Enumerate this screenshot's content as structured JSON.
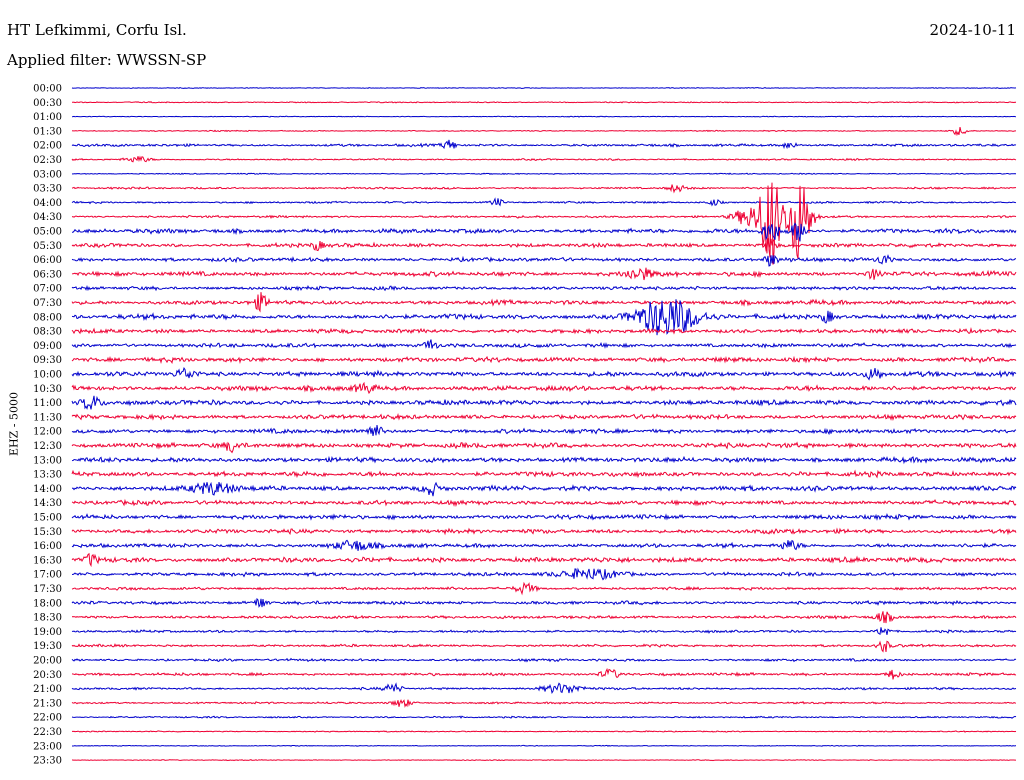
{
  "header": {
    "station": "HT Lefkimmi, Corfu Isl.",
    "date": "2024-10-11",
    "filter": "Applied filter: WWSSN-SP",
    "channel_label": "EHZ - 5000"
  },
  "chart_data": {
    "type": "line",
    "title": "HT Lefkimmi, Corfu Isl.",
    "subtitle": "Applied filter: WWSSN-SP",
    "ylabel": "EHZ - 5000",
    "xlabel": "",
    "grid": false,
    "colors": {
      "even_trace": "#0000cc",
      "odd_trace": "#ee0033"
    },
    "time_labels": [
      "00:00",
      "00:30",
      "01:00",
      "01:30",
      "02:00",
      "02:30",
      "03:00",
      "03:30",
      "04:00",
      "04:30",
      "05:00",
      "05:30",
      "06:00",
      "06:30",
      "07:00",
      "07:30",
      "08:00",
      "08:30",
      "09:00",
      "09:30",
      "10:00",
      "10:30",
      "11:00",
      "11:30",
      "12:00",
      "12:30",
      "13:00",
      "13:30",
      "14:00",
      "14:30",
      "15:00",
      "15:30",
      "16:00",
      "16:30",
      "17:00",
      "17:30",
      "18:00",
      "18:30",
      "19:00",
      "19:30",
      "20:00",
      "20:30",
      "21:00",
      "21:30",
      "22:00",
      "22:30",
      "23:00",
      "23:30"
    ],
    "noise_amplitude": [
      0.3,
      0.4,
      0.3,
      0.4,
      0.9,
      0.6,
      0.4,
      0.7,
      0.7,
      0.8,
      1.6,
      1.4,
      1.4,
      1.6,
      1.3,
      1.6,
      1.8,
      1.5,
      1.5,
      1.7,
      1.8,
      1.8,
      1.8,
      1.6,
      1.6,
      1.8,
      1.8,
      1.8,
      1.8,
      1.6,
      1.6,
      1.6,
      1.4,
      1.8,
      1.3,
      1.0,
      1.2,
      1.1,
      0.9,
      0.9,
      0.9,
      1.0,
      0.8,
      0.7,
      0.6,
      0.4,
      0.3,
      0.3
    ],
    "events": [
      {
        "trace": 3,
        "pos": 0.94,
        "amp": 4,
        "width": 0.008
      },
      {
        "trace": 4,
        "pos": 0.4,
        "amp": 5,
        "width": 0.007
      },
      {
        "trace": 4,
        "pos": 0.76,
        "amp": 3,
        "width": 0.008
      },
      {
        "trace": 5,
        "pos": 0.07,
        "amp": 3,
        "width": 0.012
      },
      {
        "trace": 7,
        "pos": 0.64,
        "amp": 4,
        "width": 0.008
      },
      {
        "trace": 8,
        "pos": 0.45,
        "amp": 4,
        "width": 0.006
      },
      {
        "trace": 8,
        "pos": 0.68,
        "amp": 3,
        "width": 0.007
      },
      {
        "trace": 9,
        "pos": 0.74,
        "amp": 48,
        "width": 0.01
      },
      {
        "trace": 9,
        "pos": 0.77,
        "amp": 44,
        "width": 0.012
      },
      {
        "trace": 9,
        "pos": 0.72,
        "amp": 10,
        "width": 0.018
      },
      {
        "trace": 10,
        "pos": 0.74,
        "amp": 12,
        "width": 0.008
      },
      {
        "trace": 10,
        "pos": 0.77,
        "amp": 10,
        "width": 0.008
      },
      {
        "trace": 11,
        "pos": 0.26,
        "amp": 5,
        "width": 0.006
      },
      {
        "trace": 11,
        "pos": 0.74,
        "amp": 8,
        "width": 0.006
      },
      {
        "trace": 12,
        "pos": 0.74,
        "amp": 6,
        "width": 0.006
      },
      {
        "trace": 12,
        "pos": 0.86,
        "amp": 5,
        "width": 0.006
      },
      {
        "trace": 13,
        "pos": 0.6,
        "amp": 6,
        "width": 0.015
      },
      {
        "trace": 13,
        "pos": 0.85,
        "amp": 5,
        "width": 0.008
      },
      {
        "trace": 15,
        "pos": 0.2,
        "amp": 8,
        "width": 0.006
      },
      {
        "trace": 16,
        "pos": 0.63,
        "amp": 20,
        "width": 0.03
      },
      {
        "trace": 16,
        "pos": 0.8,
        "amp": 6,
        "width": 0.006
      },
      {
        "trace": 18,
        "pos": 0.38,
        "amp": 6,
        "width": 0.006
      },
      {
        "trace": 20,
        "pos": 0.12,
        "amp": 5,
        "width": 0.01
      },
      {
        "trace": 20,
        "pos": 0.85,
        "amp": 6,
        "width": 0.008
      },
      {
        "trace": 21,
        "pos": 0.31,
        "amp": 5,
        "width": 0.01
      },
      {
        "trace": 22,
        "pos": 0.02,
        "amp": 7,
        "width": 0.01
      },
      {
        "trace": 24,
        "pos": 0.32,
        "amp": 6,
        "width": 0.008
      },
      {
        "trace": 25,
        "pos": 0.17,
        "amp": 6,
        "width": 0.006
      },
      {
        "trace": 28,
        "pos": 0.15,
        "amp": 6,
        "width": 0.02
      },
      {
        "trace": 28,
        "pos": 0.38,
        "amp": 6,
        "width": 0.008
      },
      {
        "trace": 32,
        "pos": 0.3,
        "amp": 5,
        "width": 0.02
      },
      {
        "trace": 32,
        "pos": 0.76,
        "amp": 5,
        "width": 0.01
      },
      {
        "trace": 33,
        "pos": 0.02,
        "amp": 6,
        "width": 0.006
      },
      {
        "trace": 34,
        "pos": 0.55,
        "amp": 5,
        "width": 0.03
      },
      {
        "trace": 35,
        "pos": 0.48,
        "amp": 5,
        "width": 0.01
      },
      {
        "trace": 36,
        "pos": 0.2,
        "amp": 6,
        "width": 0.006
      },
      {
        "trace": 37,
        "pos": 0.86,
        "amp": 5,
        "width": 0.01
      },
      {
        "trace": 38,
        "pos": 0.86,
        "amp": 6,
        "width": 0.006
      },
      {
        "trace": 39,
        "pos": 0.86,
        "amp": 6,
        "width": 0.006
      },
      {
        "trace": 41,
        "pos": 0.57,
        "amp": 5,
        "width": 0.01
      },
      {
        "trace": 41,
        "pos": 0.87,
        "amp": 5,
        "width": 0.006
      },
      {
        "trace": 42,
        "pos": 0.34,
        "amp": 5,
        "width": 0.008
      },
      {
        "trace": 42,
        "pos": 0.52,
        "amp": 5,
        "width": 0.02
      },
      {
        "trace": 43,
        "pos": 0.35,
        "amp": 4,
        "width": 0.01
      }
    ]
  }
}
